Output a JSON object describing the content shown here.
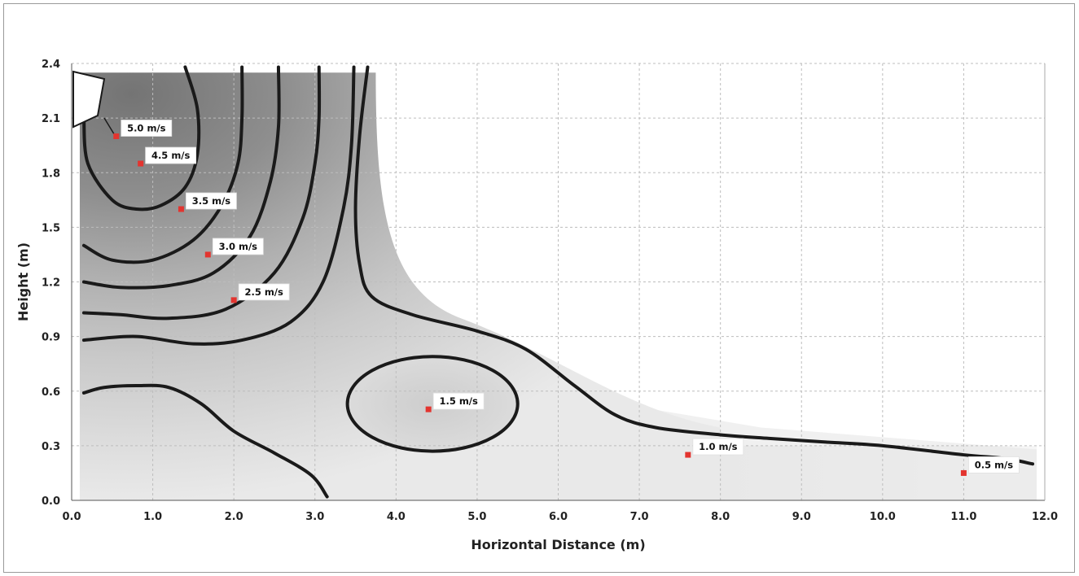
{
  "chart_data": {
    "type": "heatmap",
    "xlabel": "Horizontal Distance (m)",
    "ylabel": "Height (m)",
    "xlim": [
      0.0,
      12.0
    ],
    "ylim": [
      0.0,
      2.4
    ],
    "x_ticks": [
      "0.0",
      "1.0",
      "2.0",
      "3.0",
      "4.0",
      "5.0",
      "6.0",
      "7.0",
      "8.0",
      "9.0",
      "10.0",
      "11.0",
      "12.0"
    ],
    "y_ticks": [
      "0.0",
      "0.3",
      "0.6",
      "0.9",
      "1.2",
      "1.5",
      "1.8",
      "2.1",
      "2.4"
    ],
    "grid": true,
    "points": [
      {
        "label": "5.0 m/s",
        "x": 0.55,
        "y": 2.0
      },
      {
        "label": "4.5 m/s",
        "x": 0.85,
        "y": 1.85
      },
      {
        "label": "3.5 m/s",
        "x": 1.35,
        "y": 1.6
      },
      {
        "label": "3.0 m/s",
        "x": 1.68,
        "y": 1.35
      },
      {
        "label": "2.5 m/s",
        "x": 2.0,
        "y": 1.1
      },
      {
        "label": "1.5 m/s",
        "x": 4.4,
        "y": 0.5
      },
      {
        "label": "1.0 m/s",
        "x": 7.6,
        "y": 0.25
      },
      {
        "label": "0.5 m/s",
        "x": 11.0,
        "y": 0.15
      }
    ],
    "contours": [
      {
        "name": "c1",
        "points": [
          [
            0.15,
            2.1
          ],
          [
            0.2,
            1.85
          ],
          [
            0.5,
            1.65
          ],
          [
            0.8,
            1.6
          ],
          [
            1.1,
            1.62
          ],
          [
            1.4,
            1.72
          ],
          [
            1.55,
            1.9
          ],
          [
            1.55,
            2.15
          ],
          [
            1.4,
            2.38
          ]
        ]
      },
      {
        "name": "c2",
        "points": [
          [
            0.15,
            1.4
          ],
          [
            0.5,
            1.32
          ],
          [
            1.0,
            1.32
          ],
          [
            1.5,
            1.43
          ],
          [
            1.85,
            1.62
          ],
          [
            2.05,
            1.85
          ],
          [
            2.1,
            2.1
          ],
          [
            2.1,
            2.38
          ]
        ]
      },
      {
        "name": "c3",
        "points": [
          [
            0.15,
            1.2
          ],
          [
            0.6,
            1.17
          ],
          [
            1.2,
            1.18
          ],
          [
            1.75,
            1.25
          ],
          [
            2.2,
            1.45
          ],
          [
            2.45,
            1.75
          ],
          [
            2.55,
            2.05
          ],
          [
            2.55,
            2.38
          ]
        ]
      },
      {
        "name": "c4",
        "points": [
          [
            0.15,
            1.03
          ],
          [
            0.6,
            1.02
          ],
          [
            1.2,
            1.0
          ],
          [
            1.9,
            1.05
          ],
          [
            2.5,
            1.25
          ],
          [
            2.85,
            1.55
          ],
          [
            3.0,
            1.85
          ],
          [
            3.05,
            2.1
          ],
          [
            3.05,
            2.38
          ]
        ]
      },
      {
        "name": "c5",
        "points": [
          [
            0.15,
            0.88
          ],
          [
            0.8,
            0.9
          ],
          [
            1.5,
            0.86
          ],
          [
            2.1,
            0.88
          ],
          [
            2.7,
            0.98
          ],
          [
            3.1,
            1.2
          ],
          [
            3.35,
            1.6
          ],
          [
            3.45,
            1.95
          ],
          [
            3.48,
            2.38
          ]
        ]
      },
      {
        "name": "c6",
        "points": [
          [
            0.15,
            0.59
          ],
          [
            0.4,
            0.62
          ],
          [
            0.8,
            0.63
          ],
          [
            1.2,
            0.62
          ],
          [
            1.6,
            0.53
          ],
          [
            2.0,
            0.38
          ],
          [
            2.5,
            0.26
          ],
          [
            2.95,
            0.14
          ],
          [
            3.15,
            0.02
          ]
        ]
      },
      {
        "name": "c7",
        "points": [
          [
            3.65,
            2.38
          ],
          [
            3.55,
            2.0
          ],
          [
            3.5,
            1.6
          ],
          [
            3.55,
            1.3
          ],
          [
            3.7,
            1.12
          ],
          [
            4.2,
            1.02
          ],
          [
            5.0,
            0.93
          ],
          [
            5.6,
            0.83
          ],
          [
            6.2,
            0.63
          ],
          [
            6.7,
            0.47
          ],
          [
            7.2,
            0.4
          ],
          [
            8.0,
            0.36
          ],
          [
            8.6,
            0.34
          ],
          [
            9.3,
            0.32
          ],
          [
            10.0,
            0.3
          ],
          [
            11.0,
            0.25
          ],
          [
            11.5,
            0.23
          ],
          [
            11.85,
            0.2
          ]
        ]
      }
    ],
    "ellipse": {
      "center": [
        4.45,
        0.53
      ],
      "rx": 1.05,
      "ry": 0.26
    },
    "nozzle": {
      "name": "air-outlet"
    }
  }
}
